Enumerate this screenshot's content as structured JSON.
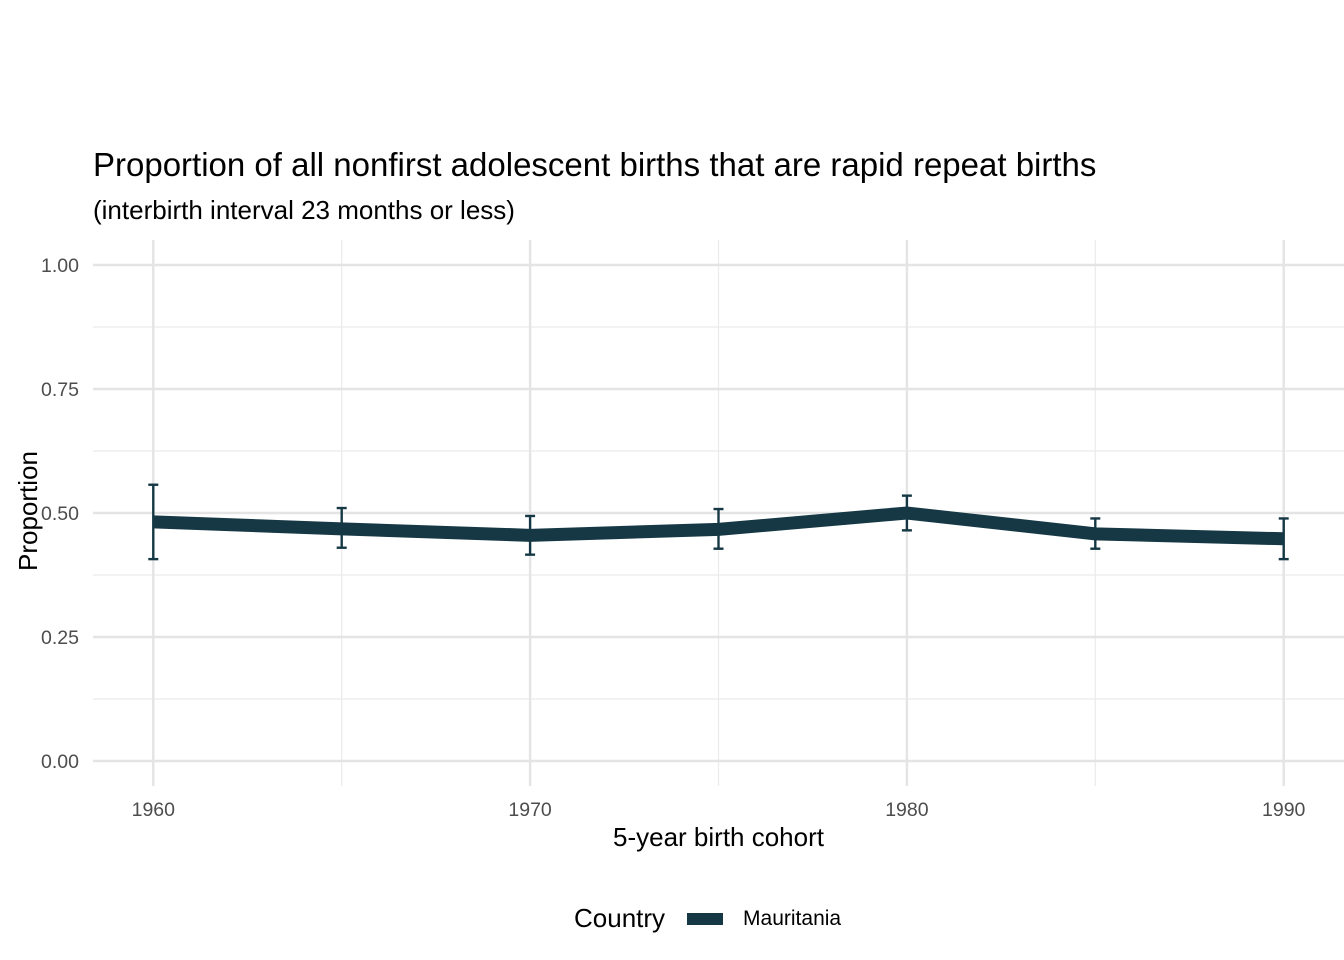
{
  "chart_data": {
    "type": "line",
    "title": "Proportion of all nonfirst adolescent births that are rapid repeat births",
    "subtitle": "(interbirth interval 23 months or less)",
    "xlabel": "5-year birth cohort",
    "ylabel": "Proportion",
    "xlim": [
      1958.4,
      1991.6
    ],
    "ylim": [
      0.0,
      1.0
    ],
    "x_ticks": [
      1960,
      1970,
      1980,
      1990
    ],
    "y_ticks": [
      0.0,
      0.25,
      0.5,
      0.75,
      1.0
    ],
    "y_tick_labels": [
      "0.00",
      "0.25",
      "0.50",
      "0.75",
      "1.00"
    ],
    "grid": true,
    "legend_position": "bottom",
    "legend_title": "Country",
    "series": [
      {
        "name": "Mauritania",
        "color": "#163844",
        "x": [
          1960,
          1965,
          1970,
          1975,
          1980,
          1985,
          1990
        ],
        "y": [
          0.482,
          0.468,
          0.455,
          0.467,
          0.5,
          0.458,
          0.448
        ],
        "lower": [
          0.407,
          0.43,
          0.416,
          0.428,
          0.465,
          0.428,
          0.407
        ],
        "upper": [
          0.557,
          0.51,
          0.494,
          0.508,
          0.535,
          0.489,
          0.489
        ]
      }
    ]
  }
}
